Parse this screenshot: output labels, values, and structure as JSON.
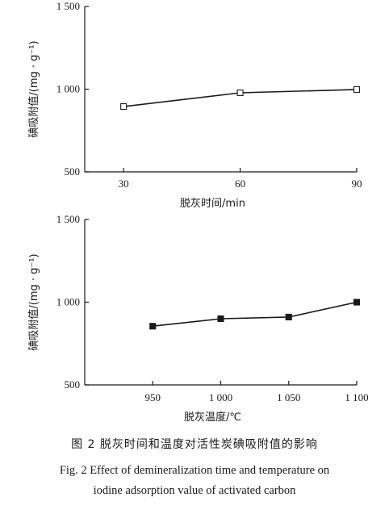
{
  "chart_data": [
    {
      "type": "line",
      "x": [
        30,
        60,
        90
      ],
      "series": [
        {
          "values": [
            895,
            978,
            998
          ],
          "marker": "open-square"
        }
      ],
      "xlabel": "脱灰时间/min",
      "ylabel": "碘吸附值/(mg · g⁻¹)",
      "xticks": [
        "30",
        "60",
        "90"
      ],
      "yticks": [
        "500",
        "1 000",
        "1 500"
      ],
      "xlim": [
        20,
        90
      ],
      "ylim": [
        500,
        1500
      ],
      "grid": false
    },
    {
      "type": "line",
      "x": [
        950,
        1000,
        1050,
        1100
      ],
      "series": [
        {
          "values": [
            855,
            900,
            910,
            1000
          ],
          "marker": "filled-square"
        }
      ],
      "xlabel": "脱灰温度/℃",
      "ylabel": "碘吸附值/(mg · g⁻¹)",
      "xticks": [
        "950",
        "1 000",
        "1 050",
        "1 100"
      ],
      "yticks": [
        "500",
        "1 000",
        "1 500"
      ],
      "xlim": [
        900,
        1100
      ],
      "ylim": [
        500,
        1500
      ],
      "grid": false
    }
  ],
  "caption": {
    "zh": "图 2   脱灰时间和温度对活性炭碘吸附值的影响",
    "en_line1": "Fig. 2    Effect of demineralization time and temperature on",
    "en_line2": "iodine adsorption value of activated carbon"
  }
}
